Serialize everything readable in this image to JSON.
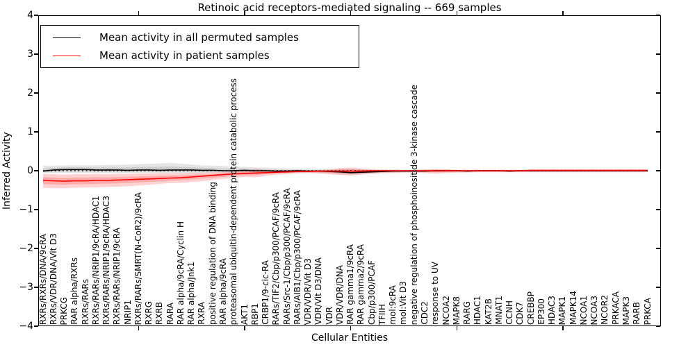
{
  "chart_data": {
    "type": "line",
    "title": "Retinoic acid receptors-mediated signaling -- 669 samples",
    "xlabel": "Cellular Entities",
    "ylabel": "Inferred Activity",
    "ylim": [
      -4,
      4
    ],
    "ytick_labels": [
      "4",
      "3",
      "2",
      "1",
      "0",
      "−1",
      "−2",
      "−3",
      "−4"
    ],
    "yticks": [
      4,
      3,
      2,
      1,
      0,
      -1,
      -2,
      -3,
      -4
    ],
    "legend_position": "upper left",
    "grid": false,
    "zero_line": {
      "style": "dotted",
      "color": "#000000",
      "y": 0
    },
    "xtick_mark_indices": [
      9,
      19,
      29,
      39,
      49
    ],
    "categories": [
      "RXRs/RXRs/DNA/9cRA",
      "RXRs/VDR/DNA/Vit D3",
      "PRKCG",
      "RAR alpha/RXRs",
      "RXRs/RARs",
      "RXRs/RARs/NRIP1/9cRA/HDAC1",
      "RXRs/RARs/NRIP1/9cRA/HDAC3",
      "RXRs/RARs/NRIP1/9cRA",
      "NRIP1",
      "RXRs/RARs/SMRT(N-CoR2)/9cRA",
      "RXRG",
      "RXRB",
      "RARA",
      "RAR alpha/9cRA/Cyclin H",
      "RAR alpha/Jnk1",
      "RXRA",
      "positive regulation of DNA binding",
      "RAR alpha/9cRA",
      "proteasomal ubiquitin-dependent protein catabolic process",
      "AKT1",
      "RBP1",
      "CRBP1/9-cic-RA",
      "RARs/TIF2/Cbp/p300/PCAF/9cRA",
      "RARs/Src-1/Cbp/p300/PCAF/9cRA",
      "RARs/AIB1/Cbp/p300/PCAF/9cRA",
      "VDR/VDR/Vit D3",
      "VDR/Vit D3/DNA",
      "VDR",
      "VDR/VDR/DNA",
      "RAR gamma1/9cRA",
      "RAR gamma2/9cRA",
      "Cbp/p300/PCAF",
      "TFIIH",
      "mol:9cRA",
      "mol:Vit D3",
      "negative regulation of phosphoinositide 3-kinase cascade",
      "CDC2",
      "response to UV",
      "NCOA2",
      "MAPK8",
      "RARG",
      "HDAC1",
      "KAT2B",
      "MNAT1",
      "CCNH",
      "CDK7",
      "CREBBP",
      "EP300",
      "HDAC3",
      "MAPK1",
      "MAPK14",
      "NCOA1",
      "NCOA3",
      "NCOR2",
      "PRKACA",
      "MAPK3",
      "RARB",
      "PRKCA"
    ],
    "series": [
      {
        "name": "Mean activity in all permuted samples",
        "color": "#000000",
        "band_color": "#000000",
        "band_alpha": 0.1,
        "values": [
          -0.01,
          0.02,
          0.03,
          0.03,
          0.03,
          0.02,
          0.02,
          0.02,
          0.01,
          0.02,
          0.02,
          0.01,
          0.02,
          0.02,
          0.02,
          0.01,
          0.01,
          0.0,
          0.0,
          0.01,
          0.0,
          0.0,
          -0.01,
          -0.01,
          0.0,
          -0.01,
          -0.01,
          -0.02,
          -0.03,
          -0.05,
          -0.04,
          -0.03,
          -0.02,
          -0.01,
          -0.01,
          -0.01,
          -0.01,
          0.0,
          0.0,
          0.0,
          -0.01,
          0.0,
          0.0,
          0.0,
          -0.01,
          0.0,
          0.0,
          0.0,
          0.0,
          0.0,
          0.0,
          0.0,
          0.0,
          0.0,
          0.0,
          0.0,
          0.0,
          0.0
        ],
        "band_hi": [
          0.13,
          0.13,
          0.14,
          0.14,
          0.14,
          0.14,
          0.15,
          0.15,
          0.16,
          0.17,
          0.18,
          0.19,
          0.2,
          0.18,
          0.16,
          0.14,
          0.13,
          0.12,
          0.11,
          0.1,
          0.09,
          0.08,
          0.07,
          0.06,
          0.06,
          0.05,
          0.05,
          0.05,
          0.05,
          0.05,
          0.04,
          0.04,
          0.04,
          0.04,
          0.03,
          0.03,
          0.03,
          0.03,
          0.03,
          0.03,
          0.03,
          0.03,
          0.03,
          0.03,
          0.03,
          0.03,
          0.03,
          0.03,
          0.03,
          0.03,
          0.03,
          0.03,
          0.03,
          0.03,
          0.03,
          0.03,
          0.03,
          0.03
        ],
        "band_lo": [
          -0.06,
          -0.06,
          -0.06,
          -0.06,
          -0.06,
          -0.06,
          -0.06,
          -0.06,
          -0.06,
          -0.06,
          -0.06,
          -0.06,
          -0.06,
          -0.06,
          -0.06,
          -0.06,
          -0.05,
          -0.05,
          -0.05,
          -0.05,
          -0.05,
          -0.05,
          -0.05,
          -0.05,
          -0.05,
          -0.05,
          -0.06,
          -0.07,
          -0.09,
          -0.1,
          -0.09,
          -0.07,
          -0.06,
          -0.05,
          -0.04,
          -0.04,
          -0.04,
          -0.04,
          -0.04,
          -0.03,
          -0.03,
          -0.03,
          -0.03,
          -0.03,
          -0.03,
          -0.03,
          -0.03,
          -0.03,
          -0.03,
          -0.03,
          -0.03,
          -0.03,
          -0.03,
          -0.03,
          -0.03,
          -0.03,
          -0.03,
          -0.03
        ]
      },
      {
        "name": "Mean activity in patient samples",
        "color": "#ff0000",
        "band_color": "#ff0000",
        "band_alpha": 0.18,
        "values": [
          -0.25,
          -0.26,
          -0.27,
          -0.26,
          -0.26,
          -0.25,
          -0.25,
          -0.24,
          -0.23,
          -0.22,
          -0.21,
          -0.2,
          -0.19,
          -0.18,
          -0.16,
          -0.14,
          -0.12,
          -0.1,
          -0.08,
          -0.07,
          -0.06,
          -0.05,
          -0.04,
          -0.03,
          -0.02,
          -0.02,
          -0.01,
          -0.01,
          -0.01,
          -0.01,
          -0.01,
          0.0,
          0.0,
          0.0,
          0.0,
          0.0,
          0.0,
          0.0,
          0.0,
          0.0,
          0.0,
          0.0,
          0.0,
          0.0,
          0.0,
          0.0,
          0.01,
          0.01,
          0.01,
          0.01,
          0.01,
          0.01,
          0.01,
          0.01,
          0.01,
          0.01,
          0.01,
          0.01
        ],
        "band_hi": [
          -0.08,
          -0.09,
          -0.1,
          -0.09,
          -0.09,
          -0.08,
          -0.09,
          -0.08,
          -0.08,
          -0.07,
          -0.07,
          -0.06,
          -0.06,
          -0.06,
          -0.05,
          -0.05,
          -0.04,
          -0.03,
          -0.02,
          0.0,
          0.05,
          0.02,
          0.0,
          0.01,
          0.0,
          0.0,
          0.01,
          0.03,
          0.07,
          0.08,
          0.06,
          0.03,
          0.02,
          0.02,
          0.01,
          0.02,
          0.03,
          0.05,
          0.04,
          0.02,
          0.02,
          0.02,
          0.02,
          0.02,
          0.02,
          0.02,
          0.02,
          0.02,
          0.02,
          0.02,
          0.02,
          0.02,
          0.02,
          0.02,
          0.02,
          0.02,
          0.02,
          0.02
        ],
        "band_lo": [
          -0.44,
          -0.45,
          -0.45,
          -0.44,
          -0.43,
          -0.43,
          -0.42,
          -0.41,
          -0.4,
          -0.38,
          -0.36,
          -0.34,
          -0.32,
          -0.31,
          -0.29,
          -0.27,
          -0.24,
          -0.21,
          -0.18,
          -0.16,
          -0.17,
          -0.13,
          -0.1,
          -0.09,
          -0.07,
          -0.06,
          -0.07,
          -0.09,
          -0.11,
          -0.12,
          -0.1,
          -0.08,
          -0.06,
          -0.06,
          -0.05,
          -0.05,
          -0.06,
          -0.08,
          -0.06,
          -0.05,
          -0.05,
          -0.04,
          -0.04,
          -0.04,
          -0.04,
          -0.04,
          -0.04,
          -0.04,
          -0.04,
          -0.04,
          -0.04,
          -0.04,
          -0.04,
          -0.04,
          -0.04,
          -0.04,
          -0.04,
          -0.04
        ]
      }
    ]
  }
}
